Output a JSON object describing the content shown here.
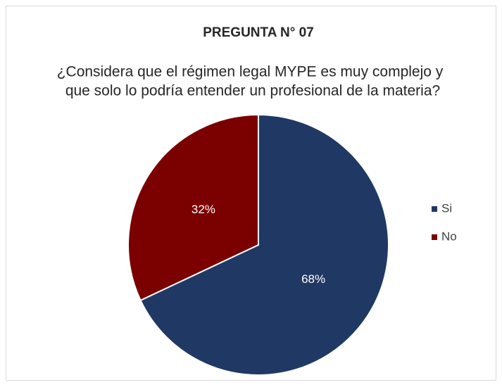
{
  "chart_data": {
    "type": "pie",
    "title": "PREGUNTA N° 07",
    "subtitle": [
      "¿Considera que el régimen legal MYPE es muy complejo y",
      "que solo lo podría entender un profesional de la materia?"
    ],
    "categories": [
      "Si",
      "No"
    ],
    "values": [
      68,
      32
    ],
    "value_labels": [
      "68%",
      "32%"
    ],
    "colors": [
      "#203864",
      "#7b0000"
    ],
    "legend": "right"
  }
}
